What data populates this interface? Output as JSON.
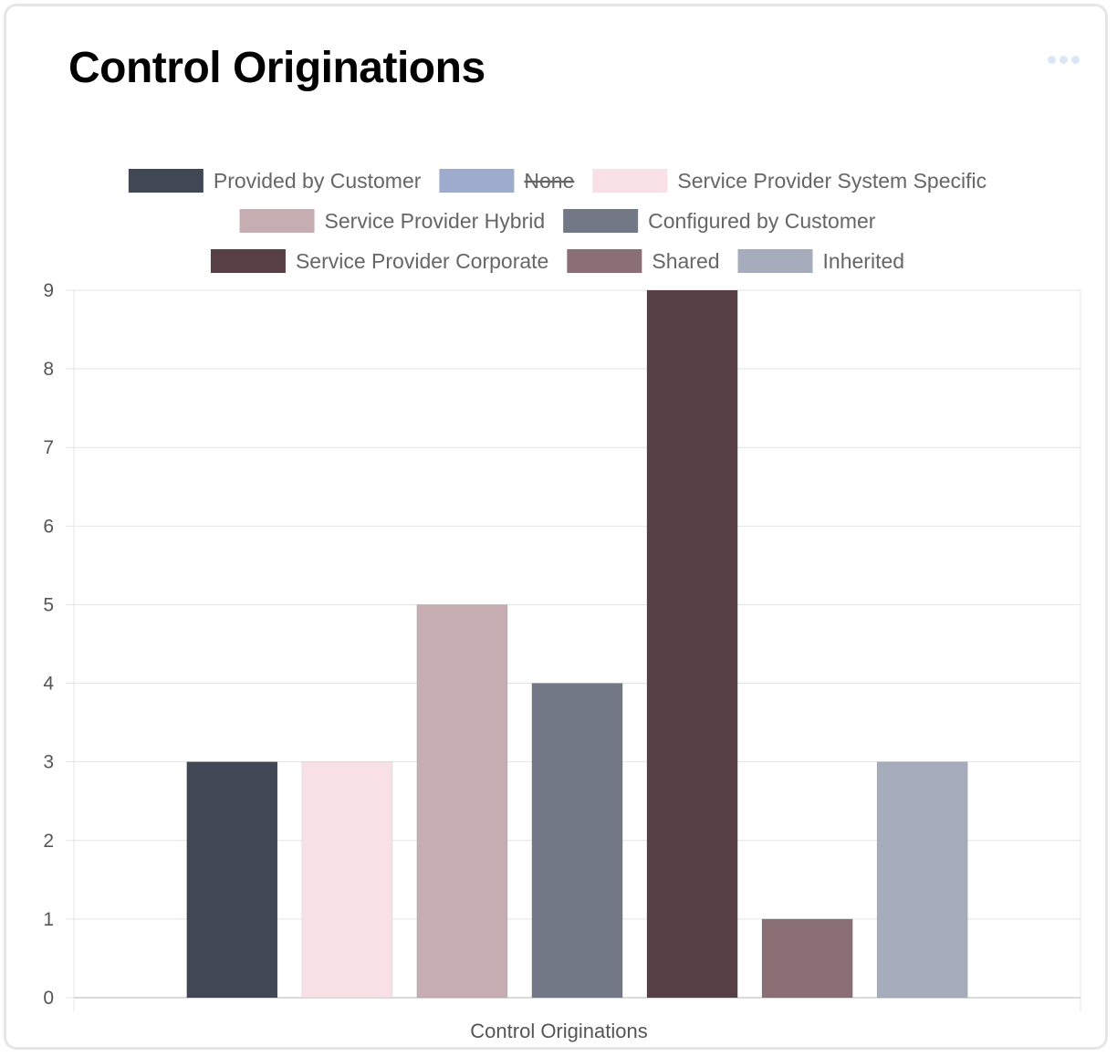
{
  "card": {
    "menu_icon": "more-horizontal-icon"
  },
  "chart_data": {
    "type": "bar",
    "title": "Control Originations",
    "xlabel": "Control Originations",
    "ylabel": "",
    "ylim": [
      0,
      9
    ],
    "yticks": [
      "0",
      "1",
      "2",
      "3",
      "4",
      "5",
      "6",
      "7",
      "8",
      "9"
    ],
    "categories": [
      "Control Originations"
    ],
    "legend_position": "top-center",
    "grid": true,
    "series": [
      {
        "name": "Provided by Customer",
        "values": [
          3
        ],
        "color": "#414855",
        "hidden": false
      },
      {
        "name": "None",
        "values": [
          0
        ],
        "color": "#9eabcc",
        "hidden": true
      },
      {
        "name": "Service Provider System Specific",
        "values": [
          3
        ],
        "color": "#f7e1e6",
        "hidden": false
      },
      {
        "name": "Service Provider Hybrid",
        "values": [
          5
        ],
        "color": "#c5adb2",
        "hidden": false
      },
      {
        "name": "Configured by Customer",
        "values": [
          4
        ],
        "color": "#737887",
        "hidden": false
      },
      {
        "name": "Service Provider Corporate",
        "values": [
          9
        ],
        "color": "#573f46",
        "hidden": false
      },
      {
        "name": "Shared",
        "values": [
          1
        ],
        "color": "#8a7074",
        "hidden": false
      },
      {
        "name": "Inherited",
        "values": [
          3
        ],
        "color": "#a6acbb",
        "hidden": false
      }
    ]
  }
}
